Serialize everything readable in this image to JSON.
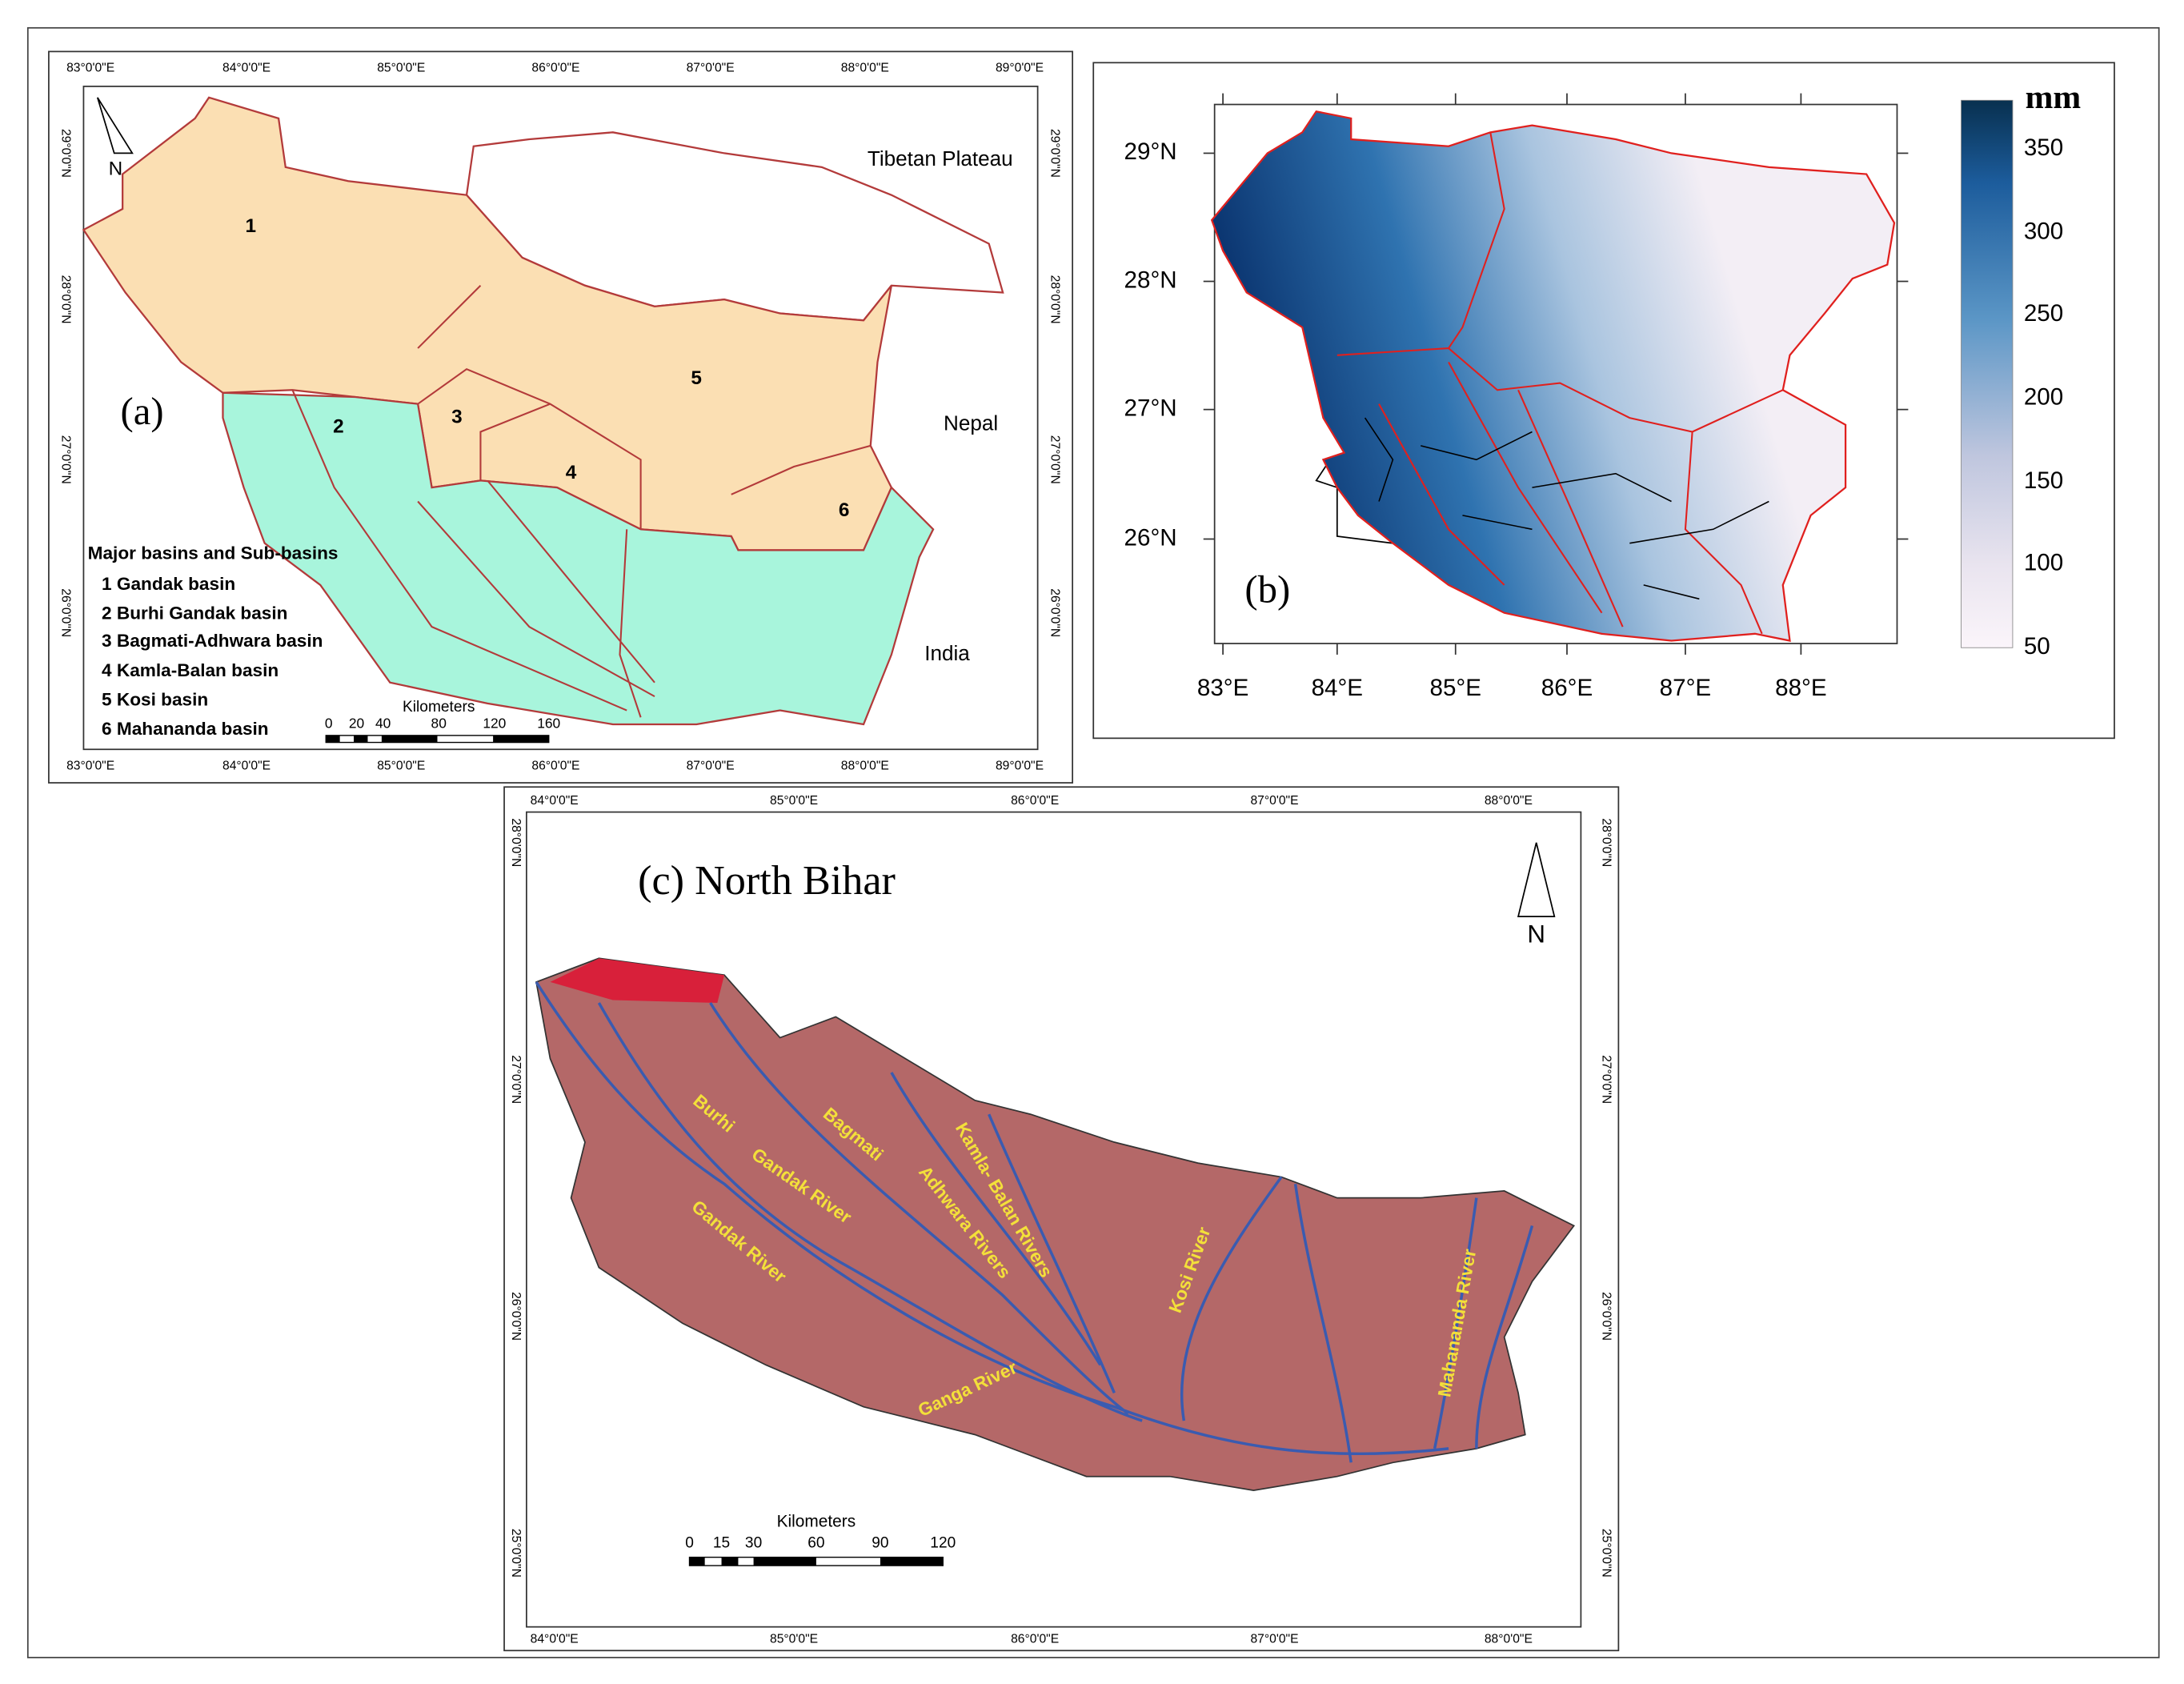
{
  "panel_a": {
    "label": "(a)",
    "lon_ticks_top": [
      "83°0'0\"E",
      "84°0'0\"E",
      "85°0'0\"E",
      "86°0'0\"E",
      "87°0'0\"E",
      "88°0'0\"E",
      "89°0'0\"E"
    ],
    "lon_ticks_bottom": [
      "83°0'0\"E",
      "84°0'0\"E",
      "85°0'0\"E",
      "86°0'0\"E",
      "87°0'0\"E",
      "88°0'0\"E",
      "89°0'0\"E"
    ],
    "lat_ticks_left": [
      "29°0'0\"N",
      "28°0'0\"N",
      "27°0'0\"N",
      "26°0'0\"N"
    ],
    "lat_ticks_right": [
      "29°0'0\"N",
      "28°0'0\"N",
      "27°0'0\"N",
      "26°0'0\"N"
    ],
    "regions": [
      "Tibetan Plateau",
      "Nepal",
      "India"
    ],
    "basin_numbers": [
      "1",
      "2",
      "3",
      "4",
      "5",
      "6"
    ],
    "legend_title": "Major basins and Sub-basins",
    "legend_items": [
      "1  Gandak basin",
      "2  Burhi Gandak basin",
      "3  Bagmati-Adhwara basin",
      "4  Kamla-Balan basin",
      "5  Kosi basin",
      "6  Mahananda basin"
    ],
    "scale_title": "Kilometers",
    "scale_ticks": [
      "0",
      "20",
      "40",
      "80",
      "120",
      "160"
    ],
    "north": "N"
  },
  "panel_b": {
    "label": "(b)",
    "x_ticks": [
      "83°E",
      "84°E",
      "85°E",
      "86°E",
      "87°E",
      "88°E"
    ],
    "y_ticks": [
      "29°N",
      "28°N",
      "27°N",
      "26°N"
    ],
    "colorbar_unit": "mm",
    "colorbar_ticks": [
      "350",
      "300",
      "250",
      "200",
      "150",
      "100",
      "50"
    ]
  },
  "panel_c": {
    "title": "(c) North Bihar",
    "lon_ticks_top": [
      "84°0'0\"E",
      "85°0'0\"E",
      "86°0'0\"E",
      "87°0'0\"E",
      "88°0'0\"E"
    ],
    "lon_ticks_bottom": [
      "84°0'0\"E",
      "85°0'0\"E",
      "86°0'0\"E",
      "87°0'0\"E",
      "88°0'0\"E"
    ],
    "lat_ticks_left": [
      "28°0'0\"N",
      "27°0'0\"N",
      "26°0'0\"N",
      "25°0'0\"N"
    ],
    "lat_ticks_right": [
      "28°0'0\"N",
      "27°0'0\"N",
      "26°0'0\"N",
      "25°0'0\"N"
    ],
    "rivers": [
      "Burhi",
      "Gandak River",
      "Bagmati",
      "Adhwara Rivers",
      "Kamla- Balan Rivers",
      "Gandak River",
      "Ganga River",
      "Kosi River",
      "Mahananda River"
    ],
    "scale_title": "Kilometers",
    "scale_ticks": [
      "0",
      "15",
      "30",
      "60",
      "90",
      "120"
    ],
    "north": "N"
  }
}
